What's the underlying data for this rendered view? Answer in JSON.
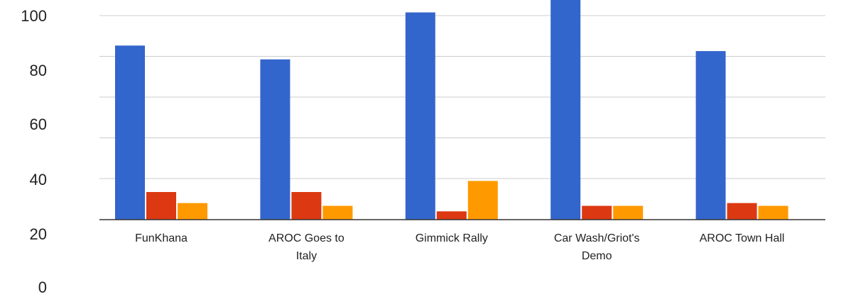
{
  "chart_data": {
    "type": "bar",
    "categories": [
      "FunKhana",
      "AROC Goes to Italy",
      "Gimmick Rally",
      "Car Wash/Griot's Demo",
      "AROC Town Hall"
    ],
    "category_lines": [
      [
        "FunKhana"
      ],
      [
        "AROC Goes to",
        "Italy"
      ],
      [
        "Gimmick Rally"
      ],
      [
        "Car Wash/Griot's",
        "Demo"
      ],
      [
        "AROC Town Hall"
      ]
    ],
    "series": [
      {
        "color": "#3366cc",
        "values": [
          63,
          58,
          75,
          80,
          61
        ]
      },
      {
        "color": "#dc3912",
        "values": [
          10,
          10,
          3,
          5,
          6
        ]
      },
      {
        "color": "#ff9900",
        "values": [
          6,
          5,
          14,
          5,
          5
        ]
      }
    ],
    "yticks": [
      "100",
      "80",
      "60",
      "40",
      "20",
      "0"
    ],
    "ylim": [
      0,
      100
    ],
    "grid": true,
    "legend": "none",
    "title": "",
    "xlabel": "",
    "ylabel": ""
  }
}
